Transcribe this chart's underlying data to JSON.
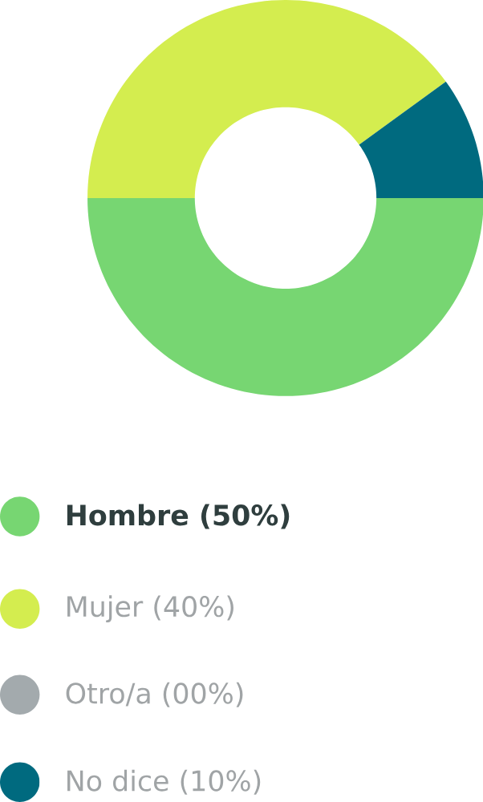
{
  "chart_data": {
    "type": "donut",
    "categories": [
      "**Hombre (50%)**",
      "Mujer (40%)",
      "Otro/a (00%)",
      "No dice (10%)"
    ],
    "values": [
      50,
      40,
      0,
      10
    ],
    "colors": [
      "#77d672",
      "#d4ed4f",
      "#a3aaad",
      "#006a7f"
    ],
    "legend": "bottom"
  }
}
